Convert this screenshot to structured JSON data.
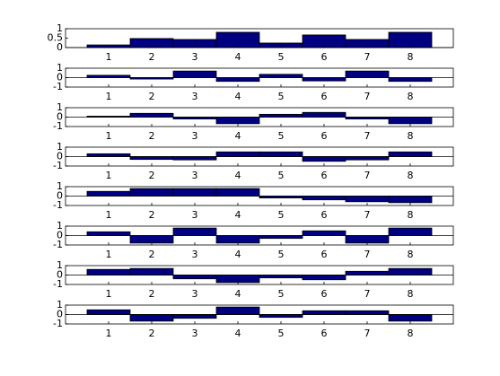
{
  "chart_data": [
    {
      "type": "bar",
      "x": [
        1,
        2,
        3,
        4,
        5,
        6,
        7,
        8
      ],
      "values": [
        0.14,
        0.48,
        0.43,
        0.81,
        0.24,
        0.67,
        0.43,
        0.81
      ],
      "color": "#000080",
      "xlim": [
        0,
        9
      ],
      "xticks": [
        1,
        2,
        3,
        4,
        5,
        6,
        7,
        8
      ],
      "ylim": [
        0,
        1
      ],
      "yticks": [
        0,
        0.5,
        1
      ]
    },
    {
      "type": "bar",
      "x": [
        1,
        2,
        3,
        4,
        5,
        6,
        7,
        8
      ],
      "values": [
        0.25,
        -0.15,
        0.7,
        -0.4,
        0.35,
        -0.35,
        0.7,
        -0.4
      ],
      "color": "#000080",
      "xlim": [
        0,
        9
      ],
      "xticks": [
        1,
        2,
        3,
        4,
        5,
        6,
        7,
        8
      ],
      "ylim": [
        -1,
        1
      ],
      "yticks": [
        -1,
        0,
        1
      ]
    },
    {
      "type": "bar",
      "x": [
        1,
        2,
        3,
        4,
        5,
        6,
        7,
        8
      ],
      "values": [
        0.1,
        0.4,
        -0.2,
        -0.7,
        0.3,
        0.5,
        -0.2,
        -0.7
      ],
      "color": "#000080",
      "xlim": [
        0,
        9
      ],
      "xticks": [
        1,
        2,
        3,
        4,
        5,
        6,
        7,
        8
      ],
      "ylim": [
        -1,
        1
      ],
      "yticks": [
        -1,
        0,
        1
      ]
    },
    {
      "type": "bar",
      "x": [
        1,
        2,
        3,
        4,
        5,
        6,
        7,
        8
      ],
      "values": [
        0.3,
        -0.3,
        -0.35,
        0.5,
        0.5,
        -0.5,
        -0.35,
        0.5
      ],
      "color": "#000080",
      "xlim": [
        0,
        9
      ],
      "xticks": [
        1,
        2,
        3,
        4,
        5,
        6,
        7,
        8
      ],
      "ylim": [
        -1,
        1
      ],
      "yticks": [
        -1,
        0,
        1
      ]
    },
    {
      "type": "bar",
      "x": [
        1,
        2,
        3,
        4,
        5,
        6,
        7,
        8
      ],
      "values": [
        0.5,
        0.8,
        0.8,
        0.8,
        -0.2,
        -0.4,
        -0.6,
        -0.7
      ],
      "color": "#000080",
      "xlim": [
        0,
        9
      ],
      "xticks": [
        1,
        2,
        3,
        4,
        5,
        6,
        7,
        8
      ],
      "ylim": [
        -1,
        1
      ],
      "yticks": [
        -1,
        0,
        1
      ]
    },
    {
      "type": "bar",
      "x": [
        1,
        2,
        3,
        4,
        5,
        6,
        7,
        8
      ],
      "values": [
        0.4,
        -0.8,
        0.8,
        -0.8,
        -0.3,
        0.5,
        -0.8,
        0.8
      ],
      "color": "#000080",
      "xlim": [
        0,
        9
      ],
      "xticks": [
        1,
        2,
        3,
        4,
        5,
        6,
        7,
        8
      ],
      "ylim": [
        -1,
        1
      ],
      "yticks": [
        -1,
        0,
        1
      ]
    },
    {
      "type": "bar",
      "x": [
        1,
        2,
        3,
        4,
        5,
        6,
        7,
        8
      ],
      "values": [
        0.6,
        0.7,
        -0.4,
        -0.8,
        -0.3,
        -0.5,
        0.4,
        0.7
      ],
      "color": "#000080",
      "xlim": [
        0,
        9
      ],
      "xticks": [
        1,
        2,
        3,
        4,
        5,
        6,
        7,
        8
      ],
      "ylim": [
        -1,
        1
      ],
      "yticks": [
        -1,
        0,
        1
      ]
    },
    {
      "type": "bar",
      "x": [
        1,
        2,
        3,
        4,
        5,
        6,
        7,
        8
      ],
      "values": [
        0.5,
        -0.7,
        -0.4,
        0.8,
        -0.3,
        0.4,
        0.4,
        -0.7
      ],
      "color": "#000080",
      "xlim": [
        0,
        9
      ],
      "xticks": [
        1,
        2,
        3,
        4,
        5,
        6,
        7,
        8
      ],
      "ylim": [
        -1,
        1
      ],
      "yticks": [
        -1,
        0,
        1
      ]
    }
  ]
}
